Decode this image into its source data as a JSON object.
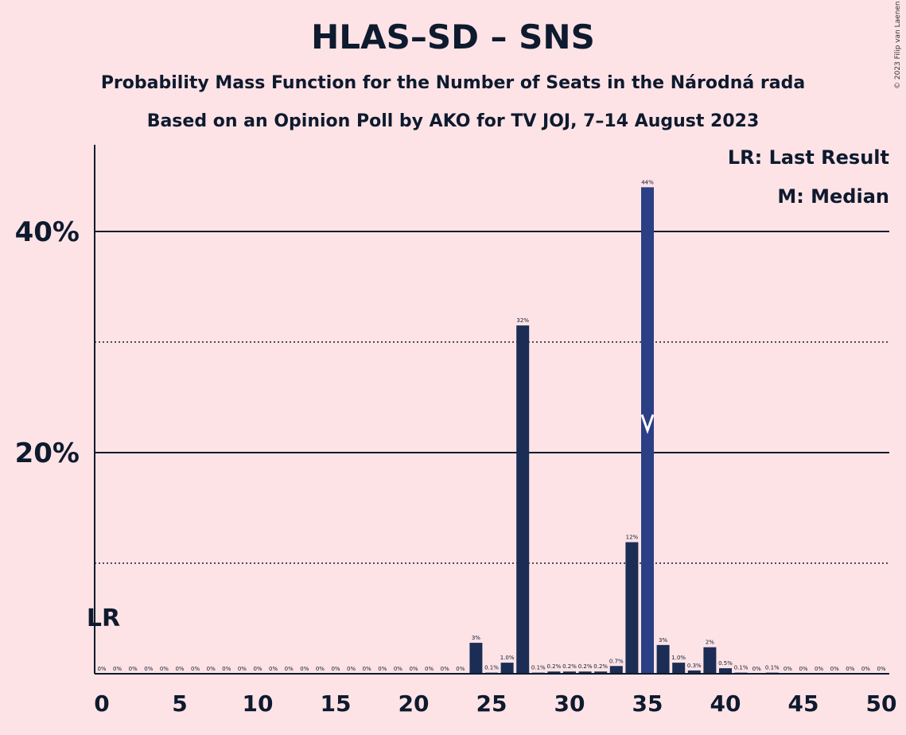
{
  "title": "HLAS–SD – SNS",
  "subtitle1": "Probability Mass Function for the Number of Seats in the Národná rada",
  "subtitle2": "Based on an Opinion Poll by AKO for TV JOJ, 7–14 August 2023",
  "copyright": "© 2023 Filip van Laenen",
  "legend": {
    "last_result": "LR: Last Result",
    "median": "M: Median"
  },
  "colors": {
    "background": "#FDE3E6",
    "bar_dark": "#1B2D55",
    "bar_median": "#2B3F84",
    "text": "#0E1A2E"
  },
  "chart_data": {
    "type": "bar",
    "title": "HLAS–SD – SNS",
    "xlabel": "",
    "ylabel": "",
    "xlim": [
      0,
      50
    ],
    "ylim": [
      0,
      48
    ],
    "x_ticks": [
      "0",
      "5",
      "10",
      "15",
      "20",
      "25",
      "30",
      "35",
      "40",
      "45",
      "50"
    ],
    "y_ticks": [
      "20%",
      "40%"
    ],
    "grid": {
      "solid_at": [
        20,
        40
      ],
      "dotted_at": [
        10,
        30
      ]
    },
    "last_result_seat": 0,
    "last_result_label": "LR",
    "median_seat": 35,
    "categories": [
      0,
      1,
      2,
      3,
      4,
      5,
      6,
      7,
      8,
      9,
      10,
      11,
      12,
      13,
      14,
      15,
      16,
      17,
      18,
      19,
      20,
      21,
      22,
      23,
      24,
      25,
      26,
      27,
      28,
      29,
      30,
      31,
      32,
      33,
      34,
      35,
      36,
      37,
      38,
      39,
      40,
      41,
      42,
      43,
      44,
      45,
      46,
      47,
      48,
      49,
      50
    ],
    "values": [
      0,
      0,
      0,
      0,
      0,
      0,
      0,
      0,
      0,
      0,
      0,
      0,
      0,
      0,
      0,
      0,
      0,
      0,
      0,
      0,
      0,
      0,
      0,
      0,
      2.8,
      0.1,
      1.0,
      31.5,
      0.1,
      0.2,
      0.2,
      0.2,
      0.2,
      0.7,
      11.9,
      44.0,
      2.6,
      1.0,
      0.3,
      2.4,
      0.5,
      0.1,
      0,
      0.1,
      0,
      0,
      0,
      0,
      0,
      0,
      0
    ],
    "labels": [
      "0%",
      "0%",
      "0%",
      "0%",
      "0%",
      "0%",
      "0%",
      "0%",
      "0%",
      "0%",
      "0%",
      "0%",
      "0%",
      "0%",
      "0%",
      "0%",
      "0%",
      "0%",
      "0%",
      "0%",
      "0%",
      "0%",
      "0%",
      "0%",
      "3%",
      "0.1%",
      "1.0%",
      "32%",
      "0.1%",
      "0.2%",
      "0.2%",
      "0.2%",
      "0.2%",
      "0.7%",
      "12%",
      "44%",
      "3%",
      "1.0%",
      "0.3%",
      "2%",
      "0.5%",
      "0.1%",
      "0%",
      "0.1%",
      "0%",
      "0%",
      "0%",
      "0%",
      "0%",
      "0%",
      "0%"
    ]
  }
}
